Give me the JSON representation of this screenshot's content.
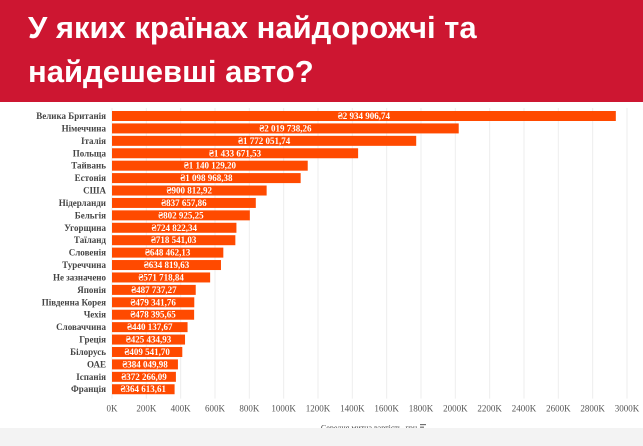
{
  "title": "У яких країнах найдорожчі та найдешевші авто?",
  "chart_data": {
    "type": "bar",
    "orientation": "horizontal",
    "categories": [
      "Велика Британія",
      "Німеччина",
      "Італія",
      "Польща",
      "Тайвань",
      "Естонія",
      "США",
      "Нідерланди",
      "Бельгія",
      "Угорщина",
      "Таїланд",
      "Словенія",
      "Туреччина",
      "Не зазначено",
      "Японія",
      "Південна Корея",
      "Чехія",
      "Словаччина",
      "Греція",
      "Білорусь",
      "ОАЕ",
      "Іспанія",
      "Франція"
    ],
    "values": [
      2934906.74,
      2019738.26,
      1772051.74,
      1433671.53,
      1140129.2,
      1098968.38,
      900812.92,
      837657.86,
      802925.25,
      724822.34,
      718541.03,
      648462.13,
      634819.63,
      571718.84,
      487737.27,
      479341.76,
      478395.65,
      440137.67,
      425434.93,
      409541.7,
      384049.98,
      372266.09,
      364613.61
    ],
    "data_labels": [
      "₴2 934 906,74",
      "₴2 019 738,26",
      "₴1 772 051,74",
      "₴1 433 671,53",
      "₴1 140 129,20",
      "₴1 098 968,38",
      "₴900 812,92",
      "₴837 657,86",
      "₴802 925,25",
      "₴724 822,34",
      "₴718 541,03",
      "₴648 462,13",
      "₴634 819,63",
      "₴571 718,84",
      "₴487 737,27",
      "₴479 341,76",
      "₴478 395,65",
      "₴440 137,67",
      "₴425 434,93",
      "₴409 541,70",
      "₴384 049,98",
      "₴372 266,09",
      "₴364 613,61"
    ],
    "xlabel": "Середня митна вартість, грн.",
    "ylabel": "",
    "xlim": [
      0,
      3000000
    ],
    "xticks": [
      "0K",
      "200K",
      "400K",
      "600K",
      "800K",
      "1000K",
      "1200K",
      "1400K",
      "1600K",
      "1800K",
      "2000K",
      "2200K",
      "2400K",
      "2600K",
      "2800K",
      "3000K"
    ],
    "grid": true,
    "bar_color": "#ff4a00"
  }
}
